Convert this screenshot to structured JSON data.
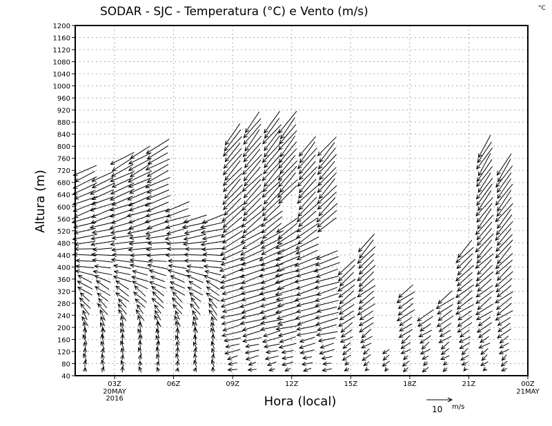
{
  "chart_data": {
    "type": "vector",
    "title": "SODAR - SJC - Temperatura (°C) e Vento (m/s)",
    "corner_label": "°C",
    "xlabel": "Hora (local)",
    "ylabel": "Altura (m)",
    "xlim_hours": [
      1,
      24
    ],
    "ylim": [
      40,
      1200
    ],
    "yticks": [
      40,
      80,
      120,
      160,
      200,
      240,
      280,
      320,
      360,
      400,
      440,
      480,
      520,
      560,
      600,
      640,
      680,
      720,
      760,
      800,
      840,
      880,
      920,
      960,
      1000,
      1040,
      1080,
      1120,
      1160,
      1200
    ],
    "xticks": [
      {
        "hour": 3,
        "label": "03Z",
        "sub": [
          "20MAY",
          "2016"
        ]
      },
      {
        "hour": 6,
        "label": "06Z",
        "sub": []
      },
      {
        "hour": 9,
        "label": "09Z",
        "sub": []
      },
      {
        "hour": 12,
        "label": "12Z",
        "sub": []
      },
      {
        "hour": 15,
        "label": "15Z",
        "sub": []
      },
      {
        "hour": 18,
        "label": "18Z",
        "sub": []
      },
      {
        "hour": 21,
        "label": "21Z",
        "sub": []
      },
      {
        "hour": 24,
        "label": "00Z",
        "sub": [
          "21MAY"
        ]
      }
    ],
    "grid": true,
    "level_step_m": 20,
    "reference_vector": {
      "speed": 10,
      "label": "10",
      "unit": "m/s"
    },
    "profiles": {
      "A": [
        [
          40,
          0,
          1.5
        ],
        [
          200,
          -1,
          4
        ],
        [
          320,
          -5,
          3.5
        ],
        [
          440,
          -8,
          0
        ],
        [
          560,
          -9,
          -3
        ],
        [
          800,
          -8,
          -5
        ]
      ],
      "B": [
        [
          40,
          -2,
          -0.5
        ],
        [
          200,
          -8,
          -2
        ],
        [
          400,
          -9,
          -3
        ],
        [
          600,
          -7,
          -7
        ],
        [
          900,
          -6,
          -8
        ]
      ],
      "C": [
        [
          40,
          -1,
          -1
        ],
        [
          120,
          -3,
          -2
        ],
        [
          250,
          -6,
          -4
        ],
        [
          500,
          -6,
          -7
        ],
        [
          900,
          -5,
          -9
        ]
      ]
    },
    "columns": [
      {
        "hour": 1.5,
        "top": 720,
        "profile": "A",
        "gaps": []
      },
      {
        "hour": 2.4,
        "top": 700,
        "profile": "A",
        "gaps": []
      },
      {
        "hour": 3.4,
        "top": 760,
        "profile": "A",
        "gaps": []
      },
      {
        "hour": 4.3,
        "top": 780,
        "profile": "A",
        "gaps": []
      },
      {
        "hour": 5.2,
        "top": 800,
        "profile": "A",
        "gaps": []
      },
      {
        "hour": 6.2,
        "top": 600,
        "profile": "A",
        "gaps": []
      },
      {
        "hour": 7.1,
        "top": 560,
        "profile": "A",
        "gaps": []
      },
      {
        "hour": 8.0,
        "top": 560,
        "profile": "A",
        "gaps": []
      },
      {
        "hour": 9.0,
        "top": 840,
        "profile": "B",
        "gaps": []
      },
      {
        "hour": 10.0,
        "top": 880,
        "profile": "B",
        "gaps": []
      },
      {
        "hour": 11.0,
        "top": 880,
        "profile": "B",
        "gaps": []
      },
      {
        "hour": 11.8,
        "top": 880,
        "profile": "B",
        "gaps": [
          [
            560,
            620
          ]
        ]
      },
      {
        "hour": 12.8,
        "top": 800,
        "profile": "B",
        "gaps": []
      },
      {
        "hour": 13.8,
        "top": 800,
        "profile": "B",
        "gaps": [
          [
            460,
            520
          ]
        ]
      },
      {
        "hour": 14.8,
        "top": 400,
        "profile": "C",
        "gaps": []
      },
      {
        "hour": 15.8,
        "top": 480,
        "profile": "C",
        "gaps": []
      },
      {
        "hour": 16.8,
        "top": 120,
        "profile": "C",
        "gaps": []
      },
      {
        "hour": 17.8,
        "top": 320,
        "profile": "C",
        "gaps": []
      },
      {
        "hour": 18.8,
        "top": 240,
        "profile": "C",
        "gaps": []
      },
      {
        "hour": 19.8,
        "top": 300,
        "profile": "C",
        "gaps": []
      },
      {
        "hour": 20.8,
        "top": 460,
        "profile": "C",
        "gaps": []
      },
      {
        "hour": 21.8,
        "top": 800,
        "profile": "C",
        "gaps": []
      },
      {
        "hour": 22.8,
        "top": 740,
        "profile": "C",
        "gaps": []
      }
    ]
  }
}
